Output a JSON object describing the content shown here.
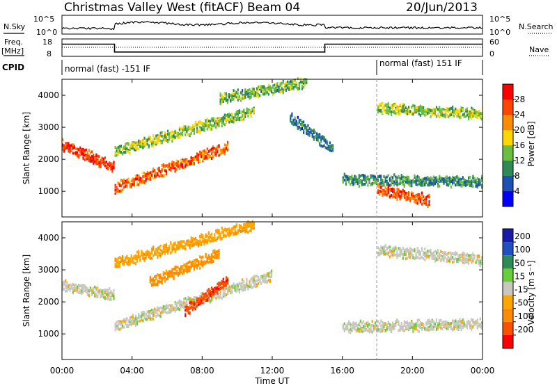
{
  "header": {
    "station": "Christmas Valley West (fitACF)",
    "beam": "Beam 04",
    "date": "20/Jun/2013"
  },
  "sky_panel": {
    "left_label": "N.Sky",
    "right_label": "N.Search",
    "ticks": [
      "10^5",
      "10^0"
    ]
  },
  "freq_panel": {
    "label_line1": "Freq.",
    "label_line2": "[MHz]",
    "left_ticks": [
      "18",
      "8"
    ],
    "right_label": "Nave",
    "right_ticks": [
      "60",
      "0"
    ]
  },
  "cpid_panel": {
    "label": "CPID",
    "segments": [
      "normal (fast) -151 IF",
      "normal (fast) 151 IF"
    ]
  },
  "range_axis": {
    "label": "Slant Range [km]",
    "ticks": [
      1000,
      2000,
      3000,
      4000
    ],
    "ylim": [
      200,
      4500
    ]
  },
  "time_axis": {
    "label": "Time UT",
    "ticks": [
      "00:00",
      "04:00",
      "08:00",
      "12:00",
      "16:00",
      "20:00",
      "00:00"
    ]
  },
  "power_scale": {
    "label": "Power [dB]",
    "ticks": [
      "4",
      "8",
      "12",
      "16",
      "20",
      "24",
      "28"
    ],
    "colors": [
      "#0000ff",
      "#1e4fb4",
      "#2e8b57",
      "#6abf40",
      "#ffd700",
      "#ff8c00",
      "#ff4500",
      "#ff0000"
    ]
  },
  "velocity_scale": {
    "label": "Velocity [m s⁻¹]",
    "ticks": [
      "200",
      "100",
      "50",
      "15",
      "-15",
      "-50",
      "-100",
      "-200"
    ],
    "colors": [
      "#1a1aaa",
      "#2050c0",
      "#2e8b57",
      "#6acd3a",
      "#c8c8c0",
      "#ffa500",
      "#ff8c00",
      "#ff5000",
      "#ff0000"
    ]
  },
  "chart_data": {
    "type": "heatmap",
    "title": "Christmas Valley West (fitACF)",
    "xlabel": "Time UT",
    "ylabel": "Slant Range [km]",
    "xlim": [
      "00:00",
      "24:00"
    ],
    "ylim": [
      200,
      4500
    ],
    "panels": [
      {
        "name": "Power [dB]",
        "range": [
          0,
          30
        ],
        "bands": [
          {
            "t0": 0,
            "t1": 3,
            "r0": 2450,
            "r1": 1750,
            "value": 26
          },
          {
            "t0": 3,
            "t1": 9.5,
            "r0": 1100,
            "r1": 2400,
            "value": 23
          },
          {
            "t0": 3,
            "t1": 11,
            "r0": 2250,
            "r1": 3500,
            "value": 14
          },
          {
            "t0": 9,
            "t1": 14,
            "r0": 3900,
            "r1": 4400,
            "value": 12
          },
          {
            "t0": 13,
            "t1": 15.5,
            "r0": 3300,
            "r1": 2300,
            "value": 8
          },
          {
            "t0": 16,
            "t1": 24,
            "r0": 1350,
            "r1": 1300,
            "value": 10
          },
          {
            "t0": 18,
            "t1": 21,
            "r0": 1050,
            "r1": 700,
            "value": 24
          },
          {
            "t0": 18,
            "t1": 24,
            "r0": 3600,
            "r1": 3400,
            "value": 14
          }
        ]
      },
      {
        "name": "Velocity [m s-1]",
        "range": [
          -200,
          200
        ],
        "bands": [
          {
            "t0": 0,
            "t1": 3,
            "r0": 2500,
            "r1": 2200,
            "value": 0
          },
          {
            "t0": 3,
            "t1": 12,
            "r0": 1250,
            "r1": 2800,
            "value": 0
          },
          {
            "t0": 5,
            "t1": 9,
            "r0": 2600,
            "r1": 3500,
            "value": -60
          },
          {
            "t0": 7,
            "t1": 9.5,
            "r0": 1700,
            "r1": 2700,
            "value": -150
          },
          {
            "t0": 3,
            "t1": 11,
            "r0": 3200,
            "r1": 4400,
            "value": -40
          },
          {
            "t0": 16,
            "t1": 24,
            "r0": 1200,
            "r1": 1300,
            "value": 0
          },
          {
            "t0": 18,
            "t1": 24,
            "r0": 3600,
            "r1": 3300,
            "value": 0
          }
        ]
      }
    ],
    "frequency_MHz": [
      {
        "t0": 0,
        "t1": 3,
        "value": 15
      },
      {
        "t0": 3,
        "t1": 15,
        "value": 10.5
      },
      {
        "t0": 15,
        "t1": 24,
        "value": 15
      }
    ],
    "cpid_change_time": 18
  }
}
